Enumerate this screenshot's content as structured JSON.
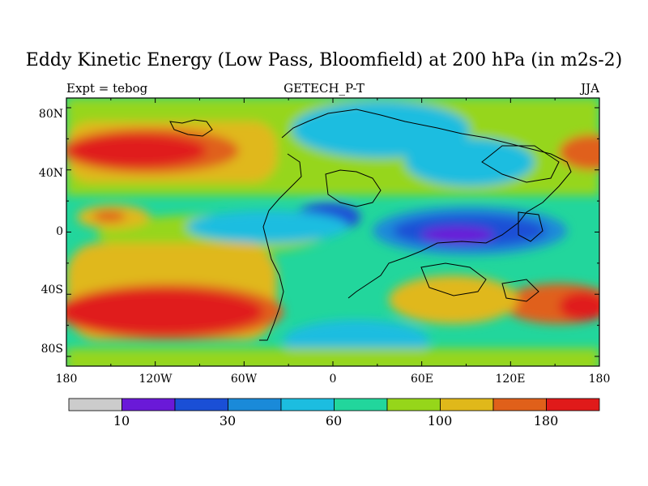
{
  "title": "Eddy Kinetic Energy (Low Pass, Bloomfield) at 200 hPa (in m2s-2)",
  "left_label": "Expt = tebog",
  "center_label": "GETECH_P-T",
  "right_label": "JJA",
  "lat_labels": [
    "80N",
    "40N",
    "0",
    "40S",
    "80S"
  ],
  "lon_labels": [
    "180",
    "120W",
    "60W",
    "0",
    "60E",
    "120E",
    "180"
  ],
  "colorbar_labels": [
    "10",
    "30",
    "60",
    "100",
    "180"
  ],
  "palette": [
    "#cccccc",
    "#6a19d8",
    "#1a4fd6",
    "#1a8ad9",
    "#1cbde0",
    "#22d69c",
    "#96d61a",
    "#e0b81a",
    "#e0601a",
    "#e01a1a"
  ]
}
